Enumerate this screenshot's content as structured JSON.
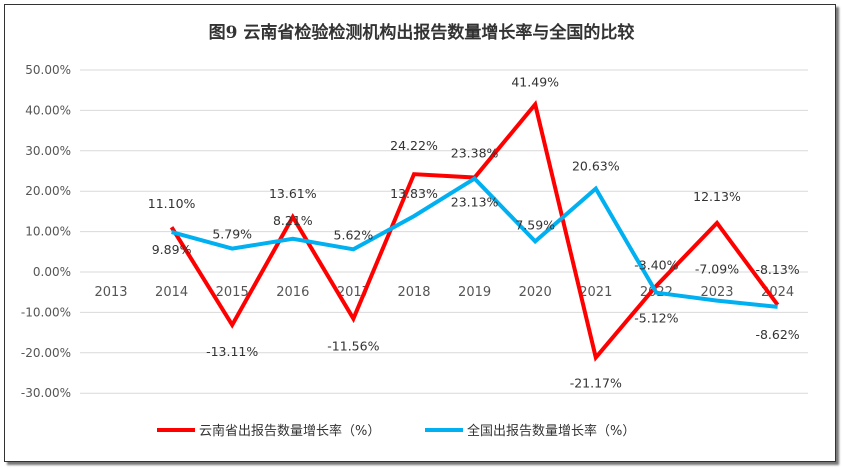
{
  "chart_data": {
    "type": "line",
    "title": "图9  云南省检验检测机构出报告数量增长率与全国的比较",
    "categories": [
      "2013",
      "2014",
      "2015",
      "2016",
      "2017",
      "2018",
      "2019",
      "2020",
      "2021",
      "2022",
      "2023",
      "2024"
    ],
    "y_ticks": [
      "50.00%",
      "40.00%",
      "30.00%",
      "20.00%",
      "10.00%",
      "0.00%",
      "-10.00%",
      "-20.00%",
      "-30.00%"
    ],
    "ylim": [
      -30,
      50
    ],
    "grid": true,
    "legend_position": "bottom",
    "series": [
      {
        "name": "云南省出报告数量增长率（%）",
        "color": "#ff0000",
        "values": [
          null,
          11.1,
          -13.11,
          13.61,
          -11.56,
          24.22,
          23.38,
          41.49,
          -21.17,
          -3.4,
          12.13,
          -8.13
        ],
        "labels": [
          null,
          "11.10%",
          "-13.11%",
          "13.61%",
          "-11.56%",
          "24.22%",
          "23.38%",
          "41.49%",
          "-21.17%",
          "-3.40%",
          "12.13%",
          "-8.13%"
        ]
      },
      {
        "name": "全国出报告数量增长率（%）",
        "color": "#00b0f0",
        "values": [
          null,
          9.89,
          5.79,
          8.21,
          5.62,
          13.83,
          23.13,
          7.59,
          20.63,
          -5.12,
          -7.09,
          -8.62
        ],
        "labels": [
          null,
          "9.89%",
          "5.79%",
          "8.21%",
          "5.62%",
          "13.83%",
          "23.13%",
          "7.59%",
          "20.63%",
          "-5.12%",
          "-7.09%",
          "-8.62%"
        ]
      }
    ]
  }
}
